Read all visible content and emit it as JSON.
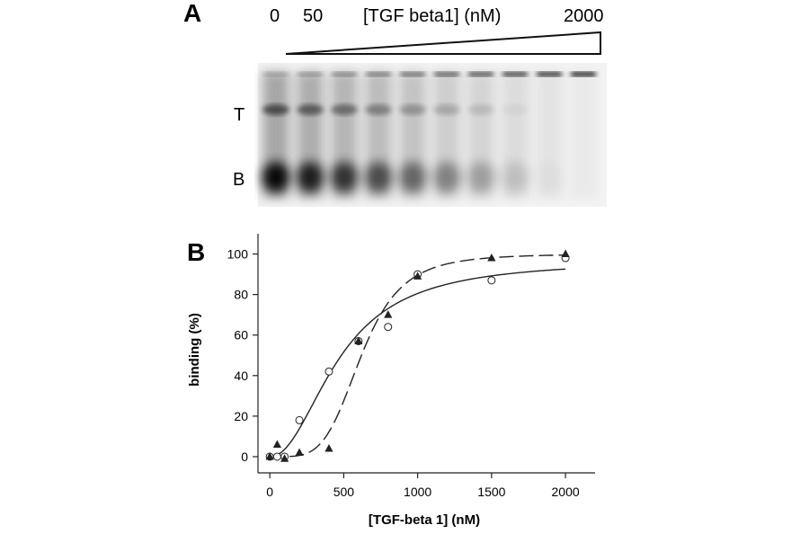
{
  "panel_a": {
    "letter": "A",
    "conc_low": "0",
    "conc_second": "50",
    "conc_title": "[TGF beta1] (nM)",
    "conc_high": "2000",
    "band_top": "T",
    "band_bottom": "B",
    "lanes": 10
  },
  "panel_b": {
    "letter": "B"
  },
  "chart_data": {
    "type": "scatter",
    "title": "",
    "xlabel": "[TGF-beta 1] (nM)",
    "ylabel": "binding (%)",
    "xlim": [
      -80,
      2200
    ],
    "ylim": [
      -8,
      110
    ],
    "xticks": [
      0,
      500,
      1000,
      1500,
      2000
    ],
    "yticks": [
      0,
      20,
      40,
      60,
      80,
      100
    ],
    "grid": false,
    "legend": "none",
    "series": [
      {
        "marker": "open-circle",
        "line": "solid",
        "x": [
          0,
          50,
          100,
          200,
          400,
          600,
          800,
          1000,
          1500,
          2000
        ],
        "y": [
          0,
          0,
          0,
          18,
          42,
          57,
          64,
          90,
          87,
          98
        ]
      },
      {
        "marker": "filled-triangle",
        "line": "dashed",
        "x": [
          0,
          50,
          100,
          200,
          400,
          600,
          800,
          1000,
          1500,
          2000
        ],
        "y": [
          0,
          6,
          -1,
          2,
          4,
          57,
          70,
          89,
          98,
          100
        ]
      }
    ],
    "fits": [
      {
        "style": "solid",
        "ec50": 470,
        "hill": 2.1,
        "top": 97
      },
      {
        "style": "dashed",
        "ec50": 620,
        "hill": 4.5,
        "top": 100
      }
    ]
  }
}
